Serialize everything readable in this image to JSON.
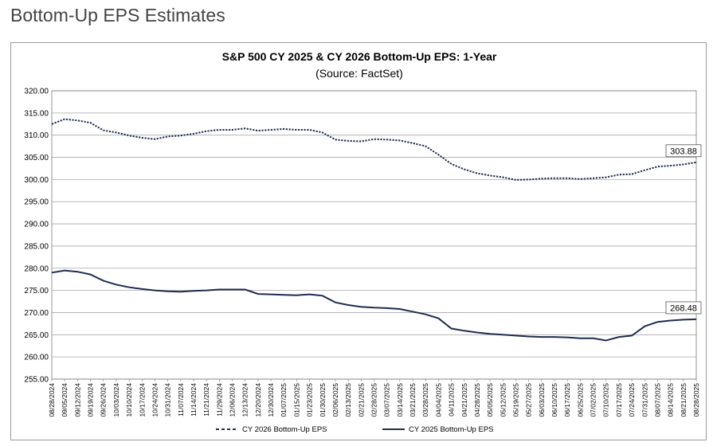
{
  "page_title": "Bottom-Up EPS Estimates",
  "chart_data": {
    "type": "line",
    "title": "S&P 500 CY 2025 & CY 2026 Bottom-Up  EPS: 1-Year",
    "subtitle": "(Source: FactSet)",
    "ylim": [
      255,
      320
    ],
    "ytick_step": 5,
    "yticks": [
      "320.00",
      "315.00",
      "310.00",
      "305.00",
      "300.00",
      "295.00",
      "290.00",
      "285.00",
      "280.00",
      "275.00",
      "270.00",
      "265.00",
      "260.00",
      "255.00"
    ],
    "grid": true,
    "legend_position": "bottom",
    "categories": [
      "08/28/2024",
      "09/05/2024",
      "09/12/2024",
      "09/19/2024",
      "09/26/2024",
      "10/03/2024",
      "10/10/2024",
      "10/17/2024",
      "10/24/2024",
      "10/31/2024",
      "11/07/2024",
      "11/14/2024",
      "11/21/2024",
      "11/29/2024",
      "12/06/2024",
      "12/13/2024",
      "12/20/2024",
      "12/30/2024",
      "01/07/2025",
      "01/15/2025",
      "01/23/2025",
      "01/30/2025",
      "02/06/2025",
      "02/13/2025",
      "02/21/2025",
      "02/28/2025",
      "03/07/2025",
      "03/14/2025",
      "03/21/2025",
      "03/28/2025",
      "04/04/2025",
      "04/11/2025",
      "04/21/2025",
      "04/28/2025",
      "05/05/2025",
      "05/12/2025",
      "05/19/2025",
      "05/27/2025",
      "06/03/2025",
      "06/10/2025",
      "06/17/2025",
      "06/25/2025",
      "07/02/2025",
      "07/10/2025",
      "07/17/2025",
      "07/24/2025",
      "07/31/2025",
      "08/07/2025",
      "08/14/2025",
      "08/21/2025",
      "08/28/2025"
    ],
    "series": [
      {
        "name": "CY 2026 Bottom-Up EPS",
        "style": "dashed",
        "color": "#1f2d4f",
        "values": [
          312.5,
          313.6,
          313.3,
          312.8,
          311.1,
          310.6,
          309.9,
          309.4,
          309.1,
          309.7,
          309.9,
          310.3,
          310.9,
          311.2,
          311.2,
          311.5,
          311.0,
          311.2,
          311.4,
          311.2,
          311.2,
          310.6,
          309.0,
          308.7,
          308.6,
          309.1,
          309.0,
          308.8,
          308.2,
          307.5,
          305.6,
          303.5,
          302.3,
          301.4,
          300.9,
          300.5,
          299.9,
          300.0,
          300.2,
          300.3,
          300.3,
          300.1,
          300.3,
          300.5,
          301.1,
          301.2,
          302.1,
          302.9,
          303.1,
          303.4,
          303.88
        ]
      },
      {
        "name": "CY 2025 Bottom-Up EPS",
        "style": "solid",
        "color": "#1f2d4f",
        "values": [
          279.0,
          279.5,
          279.2,
          278.6,
          277.2,
          276.3,
          275.7,
          275.3,
          275.0,
          274.8,
          274.7,
          274.9,
          275.0,
          275.2,
          275.2,
          275.2,
          274.2,
          274.1,
          274.0,
          273.9,
          274.1,
          273.8,
          272.3,
          271.7,
          271.3,
          271.1,
          271.0,
          270.8,
          270.2,
          269.6,
          268.7,
          266.4,
          265.9,
          265.5,
          265.2,
          265.0,
          264.8,
          264.6,
          264.5,
          264.5,
          264.4,
          264.2,
          264.2,
          263.7,
          264.5,
          264.8,
          266.9,
          267.9,
          268.2,
          268.4,
          268.48
        ]
      }
    ],
    "data_labels": [
      {
        "series": "CY 2026 Bottom-Up EPS",
        "text": "303.88"
      },
      {
        "series": "CY 2025 Bottom-Up EPS",
        "text": "268.48"
      }
    ]
  }
}
